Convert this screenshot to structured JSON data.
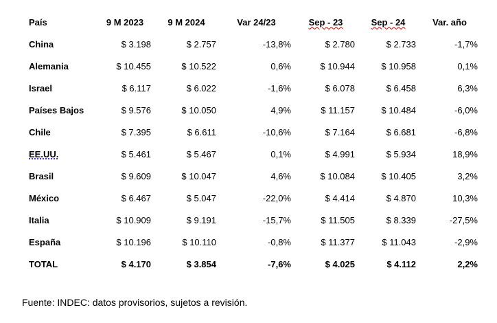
{
  "table": {
    "headers": [
      "País",
      "9 M 2023",
      "9 M 2024",
      "Var 24/23",
      "Sep - 23",
      "Sep - 24",
      "Var. año"
    ],
    "rows": [
      {
        "country": "China",
        "v2023": "$ 3.198",
        "v2024": "$ 2.757",
        "var": "-13,8%",
        "sep23": "$ 2.780",
        "sep24": "$ 2.733",
        "var_year": "-1,7%"
      },
      {
        "country": "Alemania",
        "v2023": "$ 10.455",
        "v2024": "$ 10.522",
        "var": "0,6%",
        "sep23": "$ 10.944",
        "sep24": "$ 10.958",
        "var_year": "0,1%"
      },
      {
        "country": "Israel",
        "v2023": "$ 6.117",
        "v2024": "$ 6.022",
        "var": "-1,6%",
        "sep23": "$ 6.078",
        "sep24": "$ 6.458",
        "var_year": "6,3%"
      },
      {
        "country": "Países Bajos",
        "v2023": "$ 9.576",
        "v2024": "$ 10.050",
        "var": "4,9%",
        "sep23": "$ 11.157",
        "sep24": "$ 10.484",
        "var_year": "-6,0%"
      },
      {
        "country": "Chile",
        "v2023": "$ 7.395",
        "v2024": "$ 6.611",
        "var": "-10,6%",
        "sep23": "$ 7.164",
        "sep24": "$ 6.681",
        "var_year": "-6,8%"
      },
      {
        "country": "EE.UU.",
        "v2023": "$ 5.461",
        "v2024": "$ 5.467",
        "var": "0,1%",
        "sep23": "$ 4.991",
        "sep24": "$ 5.934",
        "var_year": "18,9%"
      },
      {
        "country": "Brasil",
        "v2023": "$ 9.609",
        "v2024": "$ 10.047",
        "var": "4,6%",
        "sep23": "$ 10.084",
        "sep24": "$ 10.405",
        "var_year": "3,2%"
      },
      {
        "country": "México",
        "v2023": "$ 6.467",
        "v2024": "$ 5.047",
        "var": "-22,0%",
        "sep23": "$ 4.414",
        "sep24": "$ 4.870",
        "var_year": "10,3%"
      },
      {
        "country": "Italia",
        "v2023": "$ 10.909",
        "v2024": "$ 9.191",
        "var": "-15,7%",
        "sep23": "$ 11.505",
        "sep24": "$ 8.339",
        "var_year": "-27,5%"
      },
      {
        "country": "España",
        "v2023": "$ 10.196",
        "v2024": "$ 10.110",
        "var": "-0,8%",
        "sep23": "$ 11.377",
        "sep24": "$ 11.043",
        "var_year": "-2,9%"
      }
    ],
    "total": {
      "country": "TOTAL",
      "v2023": "$ 4.170",
      "v2024": "$ 3.854",
      "var": "-7,6%",
      "sep23": "$ 4.025",
      "sep24": "$ 4.112",
      "var_year": "2,2%"
    }
  },
  "footnote": "Fuente: INDEC: datos provisorios, sujetos a revisión.",
  "colors": {
    "spellcheck_underline": "#d00000",
    "grammar_underline": "#3a3acc"
  }
}
